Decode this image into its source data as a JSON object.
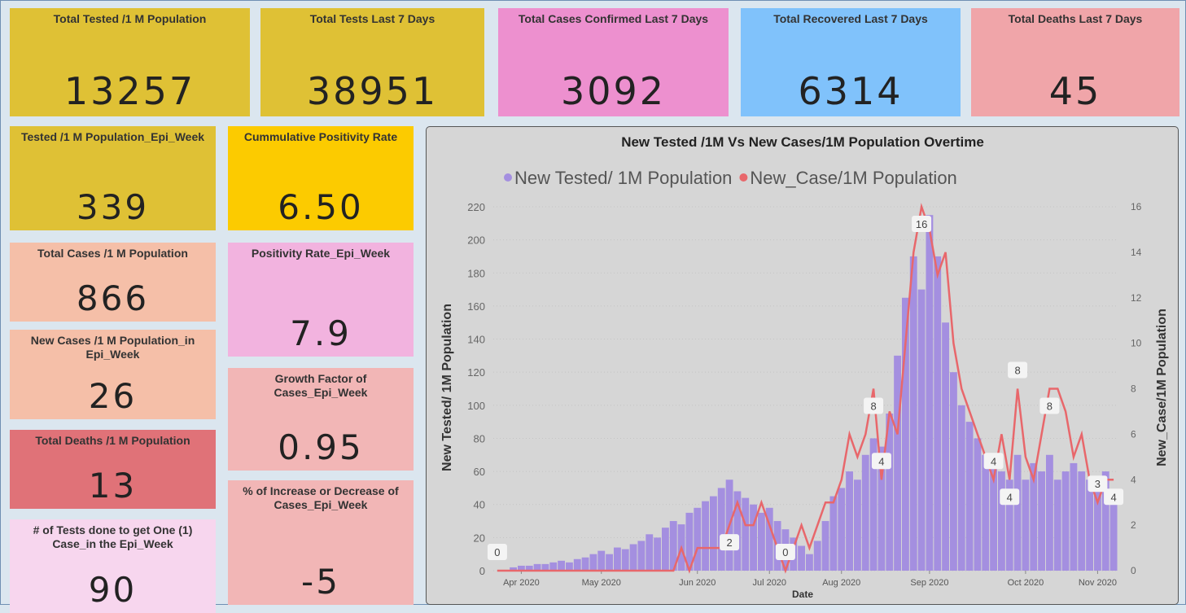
{
  "cards": [
    {
      "title": "Total Tested /1 M Population",
      "value": "13257",
      "color": "#dfc135"
    },
    {
      "title": "Total Tests Last 7 Days",
      "value": "38951",
      "color": "#dfc135"
    },
    {
      "title": "Total Cases Confirmed Last 7 Days",
      "value": "3092",
      "color": "#ed90cf"
    },
    {
      "title": "Total Recovered Last 7 Days",
      "value": "6314",
      "color": "#80c2fb"
    },
    {
      "title": "Total Deaths Last 7 Days",
      "value": "45",
      "color": "#f0a5a9"
    },
    {
      "title": "Tested /1 M Population_Epi_Week",
      "value": "339",
      "color": "#dfc135"
    },
    {
      "title": "Cummulative Positivity Rate",
      "value": "6.50",
      "color": "#fccb00"
    },
    {
      "title": "Total Cases /1 M Population",
      "value": "866",
      "color": "#f5bfa8"
    },
    {
      "title": "Positivity Rate_Epi_Week",
      "value": "7.9",
      "color": "#f2b3df"
    },
    {
      "title": "New Cases /1 M Population_in Epi_Week",
      "value": "26",
      "color": "#f5bfa8"
    },
    {
      "title": "Growth Factor of Cases_Epi_Week",
      "value": "0.95",
      "color": "#f2b6b6"
    },
    {
      "title": "Total Deaths /1 M Population",
      "value": "13",
      "color": "#e07278"
    },
    {
      "title": "% of Increase or Decrease of Cases_Epi_Week",
      "value": "-5",
      "color": "#f2b6b6"
    },
    {
      "title": "# of Tests done to get One (1) Case_in the Epi_Week",
      "value": "90",
      "color": "#f7d6ee"
    }
  ],
  "chart_data": {
    "type": "bar-line",
    "title": "New Tested /1M Vs New Cases/1M Population Overtime",
    "x_label": "Date",
    "y_label": "New Tested/ 1M Population",
    "y2_label": "New_Case/1M Population",
    "categories": [
      null,
      null,
      null,
      null,
      null,
      null,
      null,
      null,
      null,
      null,
      null,
      null,
      null,
      null,
      null,
      null,
      null,
      null,
      null,
      null,
      null,
      null,
      null,
      null,
      null,
      null,
      null,
      null,
      null,
      null,
      null,
      null,
      null,
      null,
      null,
      null,
      null,
      null,
      null,
      null,
      null,
      null,
      null,
      null,
      null,
      null,
      null,
      null,
      null,
      null,
      null,
      null,
      null,
      null,
      null,
      null,
      null,
      null,
      null,
      null,
      null,
      null,
      null,
      null,
      null,
      null,
      null,
      null,
      null,
      null,
      null,
      null,
      null,
      null,
      null,
      null,
      null,
      null
    ],
    "xticks": [
      {
        "value": 3,
        "label": "Apr 2020"
      },
      {
        "value": 13,
        "label": "May 2020"
      },
      {
        "value": 25,
        "label": "Jun 2020"
      },
      {
        "value": 34,
        "label": "Jul 2020"
      },
      {
        "value": 43,
        "label": "Aug 2020"
      },
      {
        "value": 54,
        "label": "Sep 2020"
      },
      {
        "value": 66,
        "label": "Oct 2020"
      },
      {
        "value": 75,
        "label": "Nov 2020"
      }
    ],
    "ylim": [
      0,
      220
    ],
    "yticks": [
      0,
      20,
      40,
      60,
      80,
      100,
      120,
      140,
      160,
      180,
      200,
      220
    ],
    "y2lim": [
      0,
      16
    ],
    "y2ticks": [
      0,
      2,
      4,
      6,
      8,
      10,
      12,
      14,
      16
    ],
    "grid": true,
    "series": [
      {
        "name": "New Tested/ 1M Population",
        "color": "#a48fe0",
        "values": [
          0,
          0,
          2,
          3,
          3,
          4,
          4,
          5,
          6,
          5,
          7,
          8,
          10,
          12,
          10,
          14,
          13,
          16,
          18,
          22,
          20,
          26,
          30,
          28,
          35,
          38,
          42,
          45,
          50,
          55,
          48,
          44,
          40,
          35,
          38,
          30,
          25,
          20,
          15,
          10,
          18,
          30,
          45,
          50,
          60,
          55,
          70,
          80,
          75,
          95,
          130,
          165,
          190,
          170,
          215,
          190,
          150,
          120,
          100,
          90,
          80,
          70,
          65,
          60,
          55,
          70,
          55,
          65,
          60,
          70,
          55,
          60,
          65,
          60,
          55,
          50,
          60,
          45
        ]
      },
      {
        "name": "New_Case/1M Population",
        "color": "#e8676b",
        "axis": "y2",
        "values": [
          0,
          0,
          0,
          0,
          0,
          0,
          0,
          0,
          0,
          0,
          0,
          0,
          0,
          0,
          0,
          0,
          0,
          0,
          0,
          0,
          0,
          0,
          0,
          1,
          0,
          1,
          1,
          1,
          1,
          2,
          3,
          2,
          2,
          3,
          2,
          1,
          0,
          1,
          2,
          1,
          2,
          3,
          3,
          4,
          6,
          5,
          6,
          8,
          4,
          7,
          6,
          10,
          14,
          16,
          15,
          13,
          14,
          10,
          8,
          7,
          6,
          5,
          4,
          6,
          4,
          8,
          5,
          4,
          6,
          8,
          8,
          7,
          5,
          6,
          4,
          3,
          4,
          4
        ]
      }
    ]
  }
}
